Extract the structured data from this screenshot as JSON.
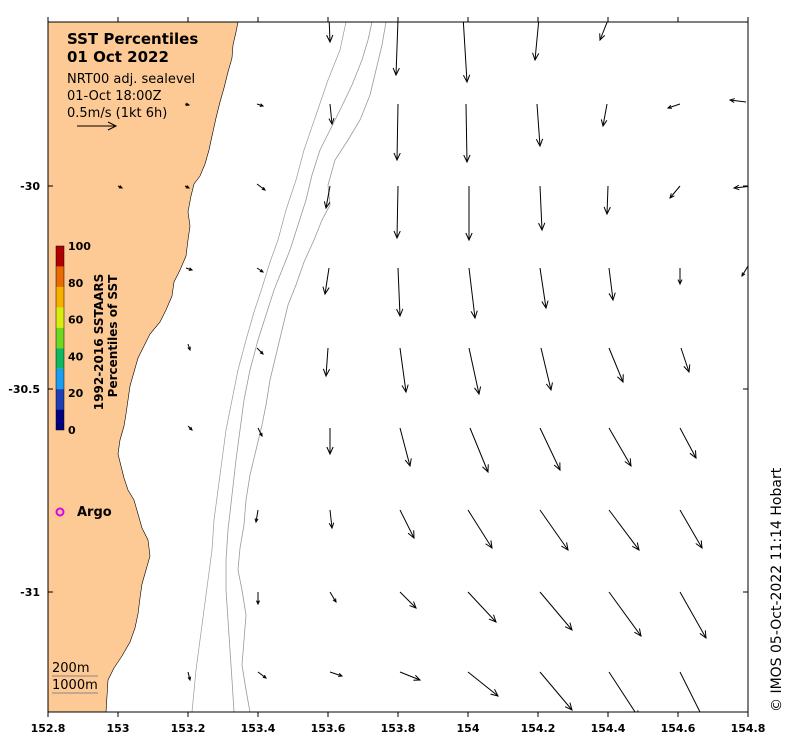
{
  "title": {
    "line1": "SST Percentiles",
    "line2": "01 Oct 2022"
  },
  "info": {
    "product": "NRT00 adj. sealevel",
    "datetime": "01-Oct 18:00Z",
    "scale": "0.5m/s (1kt 6h)"
  },
  "colorbar": {
    "title_line1": "1992-2016 SSTAARS",
    "title_line2": "Percentiles of SST",
    "labels": [
      "100",
      "80",
      "60",
      "40",
      "20",
      "0"
    ],
    "colors": [
      "#000080",
      "#1c3fb5",
      "#1a9ff0",
      "#10b860",
      "#6ed820",
      "#d8ec10",
      "#f8b000",
      "#e86a00",
      "#b00000"
    ]
  },
  "legend": {
    "argo_label": "Argo",
    "argo_color": "#e000e0",
    "contour_200": "200m",
    "contour_1000": "1000m"
  },
  "axes": {
    "x_ticks": [
      "152.8",
      "153",
      "153.2",
      "153.4",
      "153.6",
      "153.8",
      "154",
      "154.2",
      "154.4",
      "154.6",
      "154.8"
    ],
    "y_ticks": [
      "-30",
      "-30.5",
      "-31"
    ]
  },
  "credit": "© IMOS 05-Oct-2022 11:14 Hobart",
  "colors": {
    "land": "#fdca95",
    "ocean": "#ffffff",
    "contour": "#999999"
  },
  "icons": {
    "arrow": "current-vector-arrow",
    "argo": "argo-float-circle"
  }
}
